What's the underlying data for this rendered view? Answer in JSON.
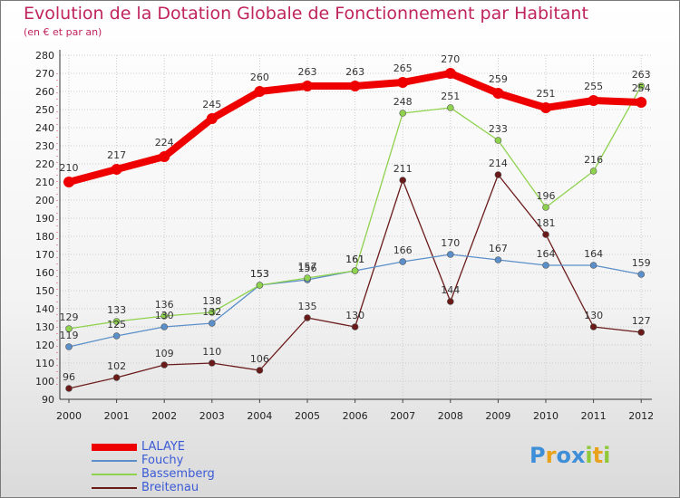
{
  "chart_data": {
    "type": "line",
    "title": "Evolution de la Dotation Globale de Fonctionnement par Habitant",
    "subtitle": "(en € et par an)",
    "x": [
      "2000",
      "2001",
      "2002",
      "2003",
      "2004",
      "2005",
      "2006",
      "2007",
      "2008",
      "2009",
      "2010",
      "2011",
      "2012"
    ],
    "ylim": [
      90,
      280
    ],
    "yticks": [
      90,
      100,
      110,
      120,
      130,
      140,
      150,
      160,
      170,
      180,
      190,
      200,
      210,
      220,
      230,
      240,
      250,
      260,
      270,
      280
    ],
    "series": [
      {
        "name": "LALAYE",
        "color": "#ee0000",
        "values": [
          210,
          217,
          224,
          245,
          260,
          263,
          263,
          265,
          270,
          259,
          251,
          255,
          254
        ]
      },
      {
        "name": "Fouchy",
        "color": "#5b8fc9",
        "values": [
          119,
          125,
          130,
          132,
          153,
          156,
          161,
          166,
          170,
          167,
          164,
          164,
          159
        ]
      },
      {
        "name": "Bassemberg",
        "color": "#8fd24e",
        "values": [
          129,
          133,
          136,
          138,
          153,
          157,
          161,
          248,
          251,
          233,
          196,
          216,
          263
        ]
      },
      {
        "name": "Breitenau",
        "color": "#6b1a1a",
        "values": [
          96,
          102,
          109,
          110,
          106,
          135,
          130,
          211,
          144,
          214,
          181,
          130,
          127
        ]
      }
    ]
  },
  "legend": {
    "items": [
      {
        "label": "LALAYE",
        "color": "#ee0000"
      },
      {
        "label": "Fouchy",
        "color": "#5b8fc9"
      },
      {
        "label": "Bassemberg",
        "color": "#8fd24e"
      },
      {
        "label": "Breitenau",
        "color": "#6b1a1a"
      }
    ]
  },
  "logo": {
    "letters": [
      "P",
      "r",
      "o",
      "x",
      "i",
      "t",
      "i"
    ],
    "colors": [
      "#3e8fd8",
      "#e8a21c",
      "#3e8fd8",
      "#3e8fd8",
      "#8fc93a",
      "#e8a21c",
      "#8fc93a"
    ]
  }
}
